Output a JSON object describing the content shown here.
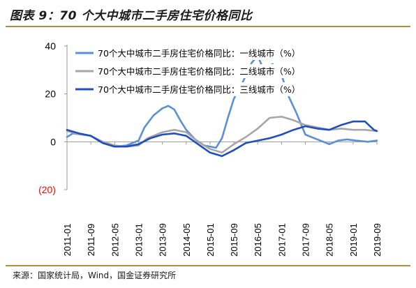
{
  "title": "图表 9：70 个大中城市二手房住宅价格同比",
  "source": "来源：国家统计局，Wind，国金证券研究所",
  "colors": {
    "tier1": "#5b8fd6",
    "tier2": "#a6a6a6",
    "tier3": "#1f4fbf",
    "negative_tick": "#ff0000",
    "axis": "#9a9a9a",
    "rule": "#b38a3e"
  },
  "chart_data": {
    "type": "line",
    "ylim": [
      -20,
      40
    ],
    "yticks": [
      {
        "value": 40,
        "label": "40"
      },
      {
        "value": 20,
        "label": "20"
      },
      {
        "value": 0,
        "label": "0"
      },
      {
        "value": -20,
        "label": "(20)"
      }
    ],
    "xlim": [
      "2011-01",
      "2019-09"
    ],
    "xticks": [
      "2011-01",
      "2011-09",
      "2012-05",
      "2013-01",
      "2013-09",
      "2014-05",
      "2015-01",
      "2015-09",
      "2016-05",
      "2017-01",
      "2017-09",
      "2018-05",
      "2019-01",
      "2019-09"
    ],
    "grid": false,
    "legend": "top-center",
    "series": [
      {
        "name": "70个大中城市二手房住宅价格同比：一线城市（%）",
        "points": [
          [
            "2011-01",
            2.0
          ],
          [
            "2011-03",
            3.5
          ],
          [
            "2011-06",
            3.0
          ],
          [
            "2011-09",
            2.5
          ],
          [
            "2012-01",
            -0.5
          ],
          [
            "2012-05",
            -2.0
          ],
          [
            "2012-09",
            -1.5
          ],
          [
            "2013-01",
            0.5
          ],
          [
            "2013-03",
            6.0
          ],
          [
            "2013-06",
            11.0
          ],
          [
            "2013-09",
            14.0
          ],
          [
            "2013-11",
            15.0
          ],
          [
            "2014-01",
            13.5
          ],
          [
            "2014-03",
            9.0
          ],
          [
            "2014-05",
            5.0
          ],
          [
            "2014-08",
            1.0
          ],
          [
            "2014-11",
            -1.5
          ],
          [
            "2015-03",
            -2.5
          ],
          [
            "2015-05",
            1.5
          ],
          [
            "2015-07",
            10.0
          ],
          [
            "2015-09",
            18.0
          ],
          [
            "2015-12",
            25.0
          ],
          [
            "2016-03",
            33.0
          ],
          [
            "2016-05",
            36.0
          ],
          [
            "2016-07",
            30.0
          ],
          [
            "2016-10",
            32.5
          ],
          [
            "2017-01",
            28.0
          ],
          [
            "2017-03",
            20.0
          ],
          [
            "2017-06",
            12.0
          ],
          [
            "2017-09",
            3.0
          ],
          [
            "2017-12",
            1.5
          ],
          [
            "2018-03",
            0.0
          ],
          [
            "2018-05",
            -1.0
          ],
          [
            "2018-08",
            0.5
          ],
          [
            "2018-11",
            1.0
          ],
          [
            "2019-02",
            0.5
          ],
          [
            "2019-06",
            0.0
          ],
          [
            "2019-09",
            0.5
          ]
        ]
      },
      {
        "name": "70个大中城市二手房住宅价格同比：二线城市（%）",
        "points": [
          [
            "2011-01",
            4.5
          ],
          [
            "2011-04",
            3.5
          ],
          [
            "2011-09",
            2.5
          ],
          [
            "2012-01",
            0.0
          ],
          [
            "2012-05",
            -1.5
          ],
          [
            "2012-09",
            -2.0
          ],
          [
            "2013-01",
            -1.5
          ],
          [
            "2013-04",
            1.5
          ],
          [
            "2013-09",
            4.0
          ],
          [
            "2014-01",
            5.0
          ],
          [
            "2014-05",
            4.0
          ],
          [
            "2014-09",
            0.0
          ],
          [
            "2015-01",
            -3.0
          ],
          [
            "2015-05",
            -4.5
          ],
          [
            "2015-09",
            -1.0
          ],
          [
            "2016-01",
            2.0
          ],
          [
            "2016-05",
            5.5
          ],
          [
            "2016-09",
            10.0
          ],
          [
            "2017-01",
            10.5
          ],
          [
            "2017-05",
            9.0
          ],
          [
            "2017-09",
            7.0
          ],
          [
            "2018-01",
            6.0
          ],
          [
            "2018-05",
            5.0
          ],
          [
            "2018-09",
            5.5
          ],
          [
            "2019-01",
            5.0
          ],
          [
            "2019-05",
            5.0
          ],
          [
            "2019-09",
            4.5
          ]
        ]
      },
      {
        "name": "70个大中城市二手房住宅价格同比：三线城市（%）",
        "points": [
          [
            "2011-01",
            5.0
          ],
          [
            "2011-05",
            3.5
          ],
          [
            "2011-09",
            2.5
          ],
          [
            "2012-01",
            -0.5
          ],
          [
            "2012-05",
            -2.0
          ],
          [
            "2012-09",
            -2.0
          ],
          [
            "2013-01",
            -1.0
          ],
          [
            "2013-05",
            1.5
          ],
          [
            "2013-09",
            3.0
          ],
          [
            "2014-01",
            3.5
          ],
          [
            "2014-05",
            2.5
          ],
          [
            "2014-09",
            -1.0
          ],
          [
            "2015-01",
            -4.5
          ],
          [
            "2015-05",
            -6.0
          ],
          [
            "2015-09",
            -3.5
          ],
          [
            "2016-01",
            -0.5
          ],
          [
            "2016-05",
            0.5
          ],
          [
            "2016-09",
            1.5
          ],
          [
            "2017-01",
            3.0
          ],
          [
            "2017-05",
            5.0
          ],
          [
            "2017-09",
            6.5
          ],
          [
            "2018-01",
            5.5
          ],
          [
            "2018-05",
            5.0
          ],
          [
            "2018-09",
            7.0
          ],
          [
            "2019-01",
            8.5
          ],
          [
            "2019-05",
            8.5
          ],
          [
            "2019-08",
            5.0
          ],
          [
            "2019-09",
            4.5
          ]
        ]
      }
    ]
  }
}
